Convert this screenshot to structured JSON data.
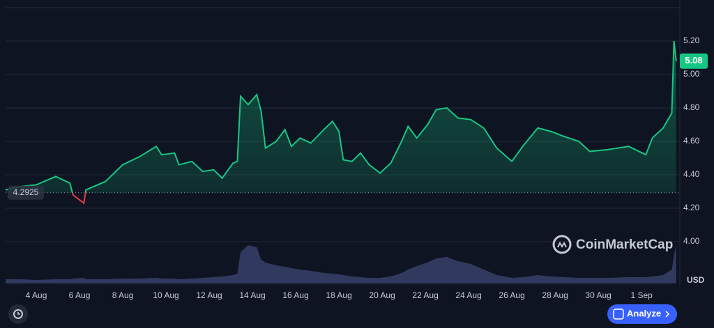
{
  "chart_data": {
    "type": "line",
    "x": [
      2.58,
      3.3,
      4,
      4.9,
      5.55,
      5.7,
      6.2,
      6.3,
      7.2,
      8,
      8.8,
      9.55,
      9.8,
      10.4,
      10.6,
      11.2,
      11.7,
      12.2,
      12.6,
      13.1,
      13.3,
      13.45,
      13.8,
      14.2,
      14.4,
      14.6,
      15.1,
      15.5,
      15.8,
      16.2,
      16.7,
      17.3,
      17.7,
      18.0,
      18.2,
      18.6,
      19.0,
      19.4,
      19.9,
      20.4,
      20.9,
      21.2,
      21.6,
      22.1,
      22.5,
      23.0,
      23.5,
      24.1,
      24.7,
      25.3,
      26.0,
      26.5,
      27.2,
      27.8,
      28.4,
      29.1,
      29.6,
      30.4,
      31.4,
      32.2,
      32.5,
      33.0,
      33.4,
      33.5,
      33.6
    ],
    "series": [
      {
        "name": "Price",
        "color": "#16c784",
        "below_color": "#ea3943",
        "values": [
          4.31,
          4.33,
          4.34,
          4.39,
          4.35,
          4.28,
          4.23,
          4.31,
          4.36,
          4.46,
          4.51,
          4.57,
          4.52,
          4.53,
          4.46,
          4.48,
          4.42,
          4.43,
          4.38,
          4.47,
          4.48,
          4.87,
          4.82,
          4.88,
          4.78,
          4.56,
          4.6,
          4.67,
          4.57,
          4.62,
          4.59,
          4.67,
          4.72,
          4.66,
          4.49,
          4.48,
          4.53,
          4.46,
          4.41,
          4.47,
          4.6,
          4.69,
          4.62,
          4.7,
          4.79,
          4.8,
          4.74,
          4.73,
          4.68,
          4.56,
          4.48,
          4.57,
          4.68,
          4.66,
          4.63,
          4.6,
          4.54,
          4.55,
          4.57,
          4.52,
          4.62,
          4.68,
          4.77,
          5.2,
          5.08
        ]
      },
      {
        "name": "Volume",
        "color": "#38406a",
        "axis": "y2",
        "values": [
          6,
          6,
          5,
          6,
          6,
          7,
          8,
          6,
          6,
          7,
          7,
          8,
          7,
          7,
          6,
          7,
          8,
          9,
          10,
          12,
          14,
          45,
          55,
          52,
          34,
          30,
          26,
          24,
          22,
          20,
          18,
          15,
          14,
          13,
          12,
          10,
          9,
          8,
          8,
          10,
          15,
          20,
          25,
          30,
          36,
          38,
          32,
          28,
          20,
          12,
          8,
          9,
          12,
          10,
          9,
          8,
          8,
          8,
          9,
          9,
          10,
          12,
          20,
          40,
          55
        ]
      }
    ],
    "baseline": {
      "value": 4.2925,
      "label": "4.2925"
    },
    "last_price": {
      "value": 5.08,
      "label": "5.08"
    },
    "xlim": [
      2.58,
      33.77
    ],
    "xticks": [
      {
        "value": 4,
        "label": "4 Aug"
      },
      {
        "value": 6,
        "label": "6 Aug"
      },
      {
        "value": 8,
        "label": "8 Aug"
      },
      {
        "value": 10,
        "label": "10 Aug"
      },
      {
        "value": 12,
        "label": "12 Aug"
      },
      {
        "value": 14,
        "label": "14 Aug"
      },
      {
        "value": 16,
        "label": "16 Aug"
      },
      {
        "value": 18,
        "label": "18 Aug"
      },
      {
        "value": 20,
        "label": "20 Aug"
      },
      {
        "value": 22,
        "label": "22 Aug"
      },
      {
        "value": 24,
        "label": "24 Aug"
      },
      {
        "value": 26,
        "label": "26 Aug"
      },
      {
        "value": 28,
        "label": "28 Aug"
      },
      {
        "value": 30,
        "label": "30 Aug"
      },
      {
        "value": 32,
        "label": "1 Sep"
      }
    ],
    "ylim": [
      3.75,
      5.4
    ],
    "yticks": [
      {
        "value": 4.0,
        "label": "4.00"
      },
      {
        "value": 4.2,
        "label": "4.20"
      },
      {
        "value": 4.4,
        "label": "4.40"
      },
      {
        "value": 4.6,
        "label": "4.60"
      },
      {
        "value": 4.8,
        "label": "4.80"
      },
      {
        "value": 5.0,
        "label": "5.00"
      },
      {
        "value": 5.2,
        "label": "5.20"
      }
    ],
    "y2lim": [
      0,
      100
    ],
    "y_unit": "USD",
    "grid": true,
    "watermark": "CoinMarketCap",
    "button": "Analyze"
  }
}
